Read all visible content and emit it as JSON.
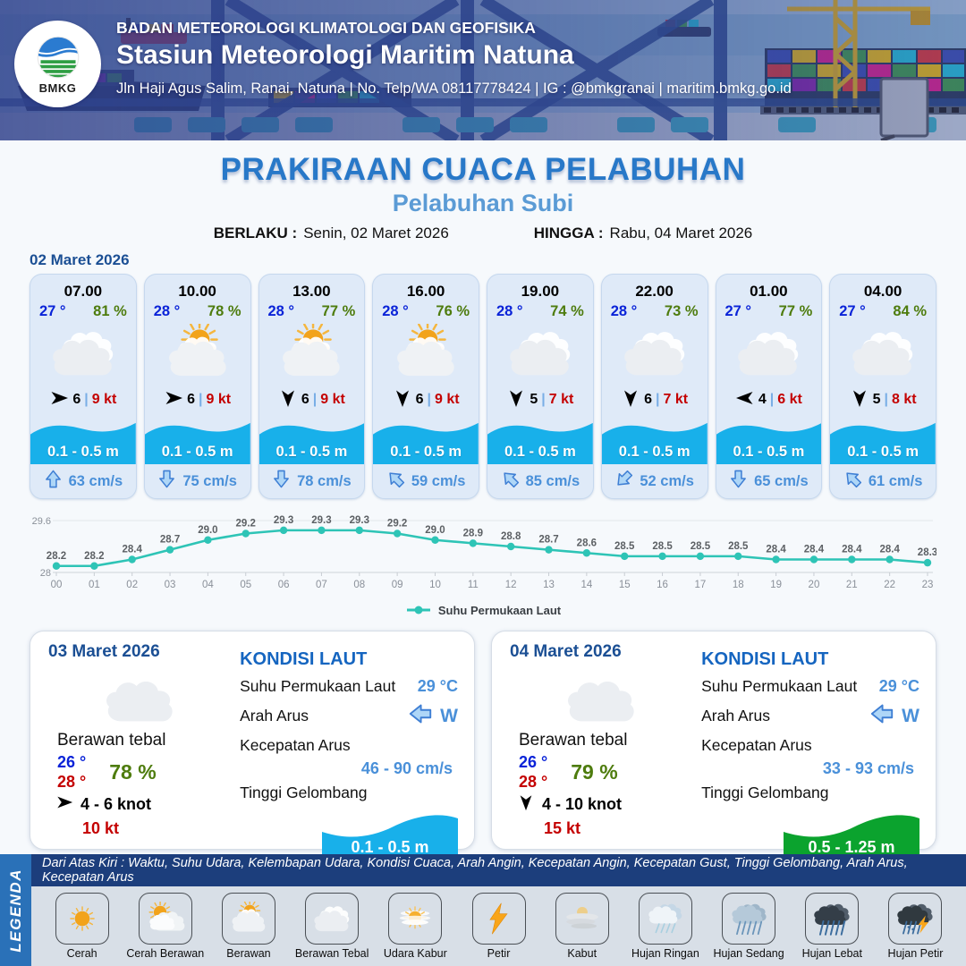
{
  "header": {
    "org": "BADAN METEOROLOGI KLIMATOLOGI DAN GEOFISIKA",
    "station": "Stasiun Meteorologi Maritim Natuna",
    "contact": "Jln Haji Agus Salim, Ranai, Natuna  | No. Telp/WA 08117778424 | IG : @bmkgranai | maritim.bmkg.go.id",
    "logo_label": "BMKG"
  },
  "title": "PRAKIRAAN CUACA PELABUHAN",
  "subtitle": "Pelabuhan Subi",
  "validity": {
    "berlaku_label": "BERLAKU :",
    "berlaku_value": "Senin, 02 Maret 2026",
    "hingga_label": "HINGGA :",
    "hingga_value": "Rabu, 04 Maret 2026"
  },
  "forecast_date": "02 Maret 2026",
  "hourly_cards": [
    {
      "time": "07.00",
      "temp": "27 °",
      "humidity": "81 %",
      "icon": "clouds",
      "wind_deg": 90,
      "wind_speed": "6",
      "sep": "|",
      "gust": "9 kt",
      "wave": "0.1 - 0.5 m",
      "current_deg": 0,
      "current": "63 cm/s"
    },
    {
      "time": "10.00",
      "temp": "28 °",
      "humidity": "78 %",
      "icon": "cloud-sun",
      "wind_deg": 90,
      "wind_speed": "6",
      "sep": "|",
      "gust": "9 kt",
      "wave": "0.1 - 0.5 m",
      "current_deg": 180,
      "current": "75 cm/s"
    },
    {
      "time": "13.00",
      "temp": "28 °",
      "humidity": "77 %",
      "icon": "cloud-sun",
      "wind_deg": 180,
      "wind_speed": "6",
      "sep": "|",
      "gust": "9 kt",
      "wave": "0.1 - 0.5 m",
      "current_deg": 180,
      "current": "78 cm/s"
    },
    {
      "time": "16.00",
      "temp": "28 °",
      "humidity": "76 %",
      "icon": "cloud-sun",
      "wind_deg": 180,
      "wind_speed": "6",
      "sep": "|",
      "gust": "9 kt",
      "wave": "0.1 - 0.5 m",
      "current_deg": 315,
      "current": "59 cm/s"
    },
    {
      "time": "19.00",
      "temp": "28 °",
      "humidity": "74 %",
      "icon": "clouds",
      "wind_deg": 180,
      "wind_speed": "5",
      "sep": "|",
      "gust": "7 kt",
      "wave": "0.1 - 0.5 m",
      "current_deg": 315,
      "current": "85 cm/s"
    },
    {
      "time": "22.00",
      "temp": "28 °",
      "humidity": "73 %",
      "icon": "clouds",
      "wind_deg": 180,
      "wind_speed": "6",
      "sep": "|",
      "gust": "7 kt",
      "wave": "0.1 - 0.5 m",
      "current_deg": 225,
      "current": "52 cm/s"
    },
    {
      "time": "01.00",
      "temp": "27 °",
      "humidity": "77 %",
      "icon": "clouds",
      "wind_deg": 270,
      "wind_speed": "4",
      "sep": "|",
      "gust": "6 kt",
      "wave": "0.1 - 0.5 m",
      "current_deg": 180,
      "current": "65 cm/s"
    },
    {
      "time": "04.00",
      "temp": "27 °",
      "humidity": "84 %",
      "icon": "clouds",
      "wind_deg": 180,
      "wind_speed": "5",
      "sep": "|",
      "gust": "8 kt",
      "wave": "0.1 - 0.5 m",
      "current_deg": 315,
      "current": "61 cm/s"
    }
  ],
  "chart_data": {
    "type": "line",
    "series_name": "Suhu Permukaan Laut",
    "x": [
      "00",
      "01",
      "02",
      "03",
      "04",
      "05",
      "06",
      "07",
      "08",
      "09",
      "10",
      "11",
      "12",
      "13",
      "14",
      "15",
      "16",
      "17",
      "18",
      "19",
      "20",
      "21",
      "22",
      "23"
    ],
    "values": [
      28.2,
      28.2,
      28.4,
      28.7,
      29.0,
      29.2,
      29.3,
      29.3,
      29.3,
      29.2,
      29.0,
      28.9,
      28.8,
      28.7,
      28.6,
      28.5,
      28.5,
      28.5,
      28.5,
      28.4,
      28.4,
      28.4,
      28.4,
      28.3
    ],
    "ylim": [
      28,
      29.6
    ],
    "yticks": [
      "28",
      "29.6"
    ],
    "line_color": "#2ec4b6",
    "legend_position": "bottom",
    "grid": "top-and-baseline"
  },
  "day_cards": [
    {
      "date": "03 Maret 2026",
      "icon": "clouds",
      "condition": "Berawan tebal",
      "temp_min": "26 °",
      "temp_max": "28 °",
      "humidity": "78 %",
      "wind_deg": 90,
      "wind_range": "4  - 6 knot",
      "gust": "10 kt",
      "sea": {
        "title": "KONDISI LAUT",
        "sst_label": "Suhu Permukaan Laut",
        "sst": "29 °C",
        "dir_label": "Arah Arus",
        "dir": "W",
        "dir_deg": 270,
        "speed_label": "Kecepatan Arus",
        "speed": "46  - 90 cm/s",
        "wave_label": "Tinggi Gelombang",
        "wave": "0.1 - 0.5 m",
        "wave_color": "#18b0ea"
      }
    },
    {
      "date": "04 Maret 2026",
      "icon": "clouds",
      "condition": "Berawan tebal",
      "temp_min": "26 °",
      "temp_max": "28 °",
      "humidity": "79 %",
      "wind_deg": 180,
      "wind_range": "4  - 10 knot",
      "gust": "15 kt",
      "sea": {
        "title": "KONDISI LAUT",
        "sst_label": "Suhu Permukaan Laut",
        "sst": "29 °C",
        "dir_label": "Arah Arus",
        "dir": "W",
        "dir_deg": 270,
        "speed_label": "Kecepatan Arus",
        "speed": "33  - 93 cm/s",
        "wave_label": "Tinggi Gelombang",
        "wave": "0.5 - 1.25 m",
        "wave_color": "#0ba32e"
      }
    }
  ],
  "legend": {
    "strip_label": "LEGENDA",
    "description": "Dari Atas Kiri : Waktu, Suhu Udara, Kelembapan Udara, Kondisi Cuaca, Arah Angin, Kecepatan Angin, Kecepatan Gust, Tinggi Gelombang, Arah Arus, Kecepatan Arus",
    "items": [
      {
        "label": "Cerah",
        "icon": "sun"
      },
      {
        "label": "Cerah Berawan",
        "icon": "sun-cloud"
      },
      {
        "label": "Berawan",
        "icon": "cloud-sun"
      },
      {
        "label": "Berawan Tebal",
        "icon": "clouds"
      },
      {
        "label": "Udara Kabur",
        "icon": "haze"
      },
      {
        "label": "Petir",
        "icon": "bolt"
      },
      {
        "label": "Kabut",
        "icon": "fog"
      },
      {
        "label": "Hujan Ringan",
        "icon": "rain-light"
      },
      {
        "label": "Hujan Sedang",
        "icon": "rain-moderate"
      },
      {
        "label": "Hujan Lebat",
        "icon": "rain-heavy"
      },
      {
        "label": "Hujan Petir",
        "icon": "rain-bolt"
      }
    ]
  },
  "colors": {
    "title_blue": "#2878c8",
    "subtitle_blue": "#5b9bd5",
    "date_navy": "#1b4f94",
    "temp_blue": "#0a23d8",
    "humidity_green": "#4e7c0e",
    "gust_red": "#c40000",
    "separator_blue": "#79aee6",
    "wave_cyan": "#18b0ea",
    "wave_green": "#0ba32e",
    "current_blue": "#4a90d9",
    "sea_value_blue": "#4a90d9",
    "line_teal": "#2ec4b6",
    "legend_bar_navy": "#1c3e7c",
    "legenda_strip_blue": "#2a71b8",
    "card_bg": "#dfeaf8"
  }
}
